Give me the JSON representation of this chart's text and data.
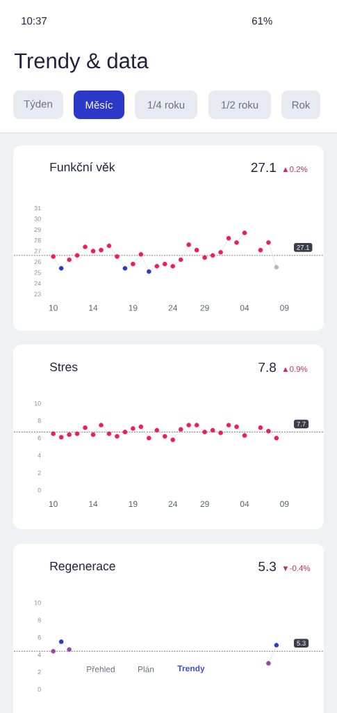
{
  "chart_data": [
    {
      "type": "other",
      "title": "Trendy & data",
      "annotations": [
        "10:37",
        "61%",
        "Týden",
        "Měsíc",
        "1/4 roku",
        "1/2 roku",
        "Rok",
        "Přehled",
        "Plán",
        "Trendy"
      ]
    },
    {
      "type": "line",
      "title": "Funkční věk",
      "annotations": [
        "27.1",
        "▲0.2%",
        "27.1"
      ],
      "marker": "circle",
      "categories": [
        "10",
        null,
        null,
        null,
        null,
        "14",
        null,
        null,
        null,
        null,
        "19",
        null,
        null,
        null,
        null,
        "24",
        null,
        null,
        null,
        "29",
        null,
        null,
        null,
        null,
        "04",
        null,
        null,
        null,
        null,
        "09"
      ],
      "series": [
        {
          "color": "#dfe1e8",
          "values": [
            26.5,
            25.4,
            26.2,
            26.6,
            27.4,
            27.0,
            27.1,
            27.5,
            26.5,
            25.4,
            25.8,
            26.7,
            25.1,
            25.6,
            25.8,
            25.6,
            26.2,
            27.6,
            27.1,
            26.4,
            26.6,
            26.9,
            28.2,
            27.8,
            28.7,
            null,
            27.1,
            27.8,
            25.5,
            null
          ],
          "colors": [
            "#e8205a",
            "#2b3bbf",
            "#e8205a",
            "#e8205a",
            "#e8205a",
            "#e8205a",
            "#e8205a",
            "#e8205a",
            "#e8205a",
            "#2b3bbf",
            "#e8205a",
            "#e8205a",
            "#2b3bbf",
            "#e8205a",
            "#e8205a",
            "#e8205a",
            "#e8205a",
            "#e8205a",
            "#e8205a",
            "#e8205a",
            "#e8205a",
            "#e8205a",
            "#e8205a",
            "#e8205a",
            "#e8205a",
            null,
            "#e8205a",
            "#e8205a",
            "#b4b8c6",
            null
          ]
        }
      ],
      "ylim": [
        23,
        31
      ],
      "yticks": [
        23,
        24,
        25,
        26,
        27,
        28,
        29,
        30,
        31
      ],
      "ref_lines": [
        {
          "axis": "y",
          "value": 26.6,
          "color": "#3a3d4a",
          "line_style": "dashed"
        }
      ]
    },
    {
      "type": "line",
      "title": "Stres",
      "annotations": [
        "7.8",
        "▲0.9%",
        "7.7"
      ],
      "marker": "circle",
      "categories": [
        "10",
        null,
        null,
        null,
        null,
        "14",
        null,
        null,
        null,
        null,
        "19",
        null,
        null,
        null,
        null,
        "24",
        null,
        null,
        null,
        "29",
        null,
        null,
        null,
        null,
        "04",
        null,
        null,
        null,
        null,
        "09"
      ],
      "series": [
        {
          "color": "#dfe1e8",
          "values": [
            6.5,
            6.1,
            6.4,
            6.5,
            7.2,
            6.4,
            7.5,
            6.5,
            6.2,
            6.7,
            7.1,
            7.3,
            6.0,
            6.9,
            6.2,
            5.8,
            7.0,
            7.5,
            7.5,
            6.7,
            6.9,
            6.6,
            7.5,
            7.3,
            6.3,
            null,
            7.2,
            6.8,
            6.0,
            null
          ],
          "colors": [
            "#e8205a",
            "#e8205a",
            "#e8205a",
            "#e8205a",
            "#e8205a",
            "#e8205a",
            "#e8205a",
            "#e8205a",
            "#e8205a",
            "#e8205a",
            "#e8205a",
            "#e8205a",
            "#e8205a",
            "#e8205a",
            "#e8205a",
            "#e8205a",
            "#e8205a",
            "#e8205a",
            "#e8205a",
            "#e8205a",
            "#e8205a",
            "#e8205a",
            "#e8205a",
            "#e8205a",
            "#e8205a",
            null,
            "#e8205a",
            "#e8205a",
            "#e8205a",
            null
          ]
        }
      ],
      "ylim": [
        0,
        10
      ],
      "yticks": [
        0,
        2,
        4,
        6,
        8,
        10
      ],
      "ref_lines": [
        {
          "axis": "y",
          "value": 6.7,
          "color": "#3a3d4a",
          "line_style": "dashed"
        }
      ]
    },
    {
      "type": "line",
      "title": "Regenerace",
      "annotations": [
        "5.3",
        "▼-0.4%",
        "5.3"
      ],
      "marker": "circle",
      "tick_labels": "y",
      "categories": [
        null,
        null,
        null,
        null,
        null,
        null,
        null,
        null,
        null,
        null,
        null,
        null,
        null,
        null,
        null,
        null,
        null,
        null,
        null,
        null,
        null,
        null,
        null,
        null,
        null,
        null,
        null,
        null,
        null,
        null
      ],
      "series": [
        {
          "color": "#dfe1e8",
          "values": [
            4.4,
            5.5,
            4.6,
            null,
            null,
            null,
            null,
            null,
            null,
            null,
            null,
            null,
            null,
            null,
            null,
            null,
            null,
            null,
            null,
            null,
            null,
            null,
            null,
            null,
            null,
            null,
            null,
            3.0,
            5.1,
            null
          ],
          "colors": [
            "#9a46a6",
            "#2b3bbf",
            "#9a46a6",
            null,
            null,
            null,
            null,
            null,
            null,
            null,
            null,
            null,
            null,
            null,
            null,
            null,
            null,
            null,
            null,
            null,
            null,
            null,
            null,
            null,
            null,
            null,
            null,
            "#9a46a6",
            "#2b3bbf",
            null
          ]
        }
      ],
      "ylim": [
        0,
        10
      ],
      "yticks": [
        0,
        2,
        4,
        6,
        8,
        10
      ],
      "ref_lines": [
        {
          "axis": "y",
          "value": 4.4,
          "color": "#3a3d4a",
          "line_style": "dashed"
        }
      ]
    }
  ]
}
